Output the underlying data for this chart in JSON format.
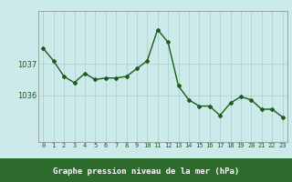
{
  "hours": [
    0,
    1,
    2,
    3,
    4,
    5,
    6,
    7,
    8,
    9,
    10,
    11,
    12,
    13,
    14,
    15,
    16,
    17,
    18,
    19,
    20,
    21,
    22,
    23
  ],
  "pressure": [
    1037.5,
    1037.1,
    1036.6,
    1036.4,
    1036.7,
    1036.5,
    1036.55,
    1036.55,
    1036.6,
    1036.85,
    1037.1,
    1038.1,
    1037.7,
    1036.3,
    1035.85,
    1035.65,
    1035.65,
    1035.35,
    1035.75,
    1035.95,
    1035.85,
    1035.55,
    1035.55,
    1035.3
  ],
  "line_color": "#1a5c1a",
  "marker": "D",
  "marker_size": 2,
  "bg_color": "#cceaea",
  "plot_bg_color": "#cceaea",
  "grid_color": "#aacccc",
  "bottom_bar_color": "#2d6b2d",
  "xlabel": "Graphe pression niveau de la mer (hPa)",
  "xlabel_color": "#ffffff",
  "tick_color": "#1a5c1a",
  "yticks": [
    1036,
    1037
  ],
  "ylim": [
    1034.5,
    1038.7
  ],
  "xlim": [
    -0.5,
    23.5
  ],
  "xticks": [
    0,
    1,
    2,
    3,
    4,
    5,
    6,
    7,
    8,
    9,
    10,
    11,
    12,
    13,
    14,
    15,
    16,
    17,
    18,
    19,
    20,
    21,
    22,
    23
  ],
  "xtick_labels": [
    "0",
    "1",
    "2",
    "3",
    "4",
    "5",
    "6",
    "7",
    "8",
    "9",
    "10",
    "11",
    "12",
    "13",
    "14",
    "15",
    "16",
    "17",
    "18",
    "19",
    "20",
    "21",
    "22",
    "23"
  ],
  "line_width": 1.0,
  "figsize": [
    3.2,
    2.0
  ],
  "dpi": 100
}
